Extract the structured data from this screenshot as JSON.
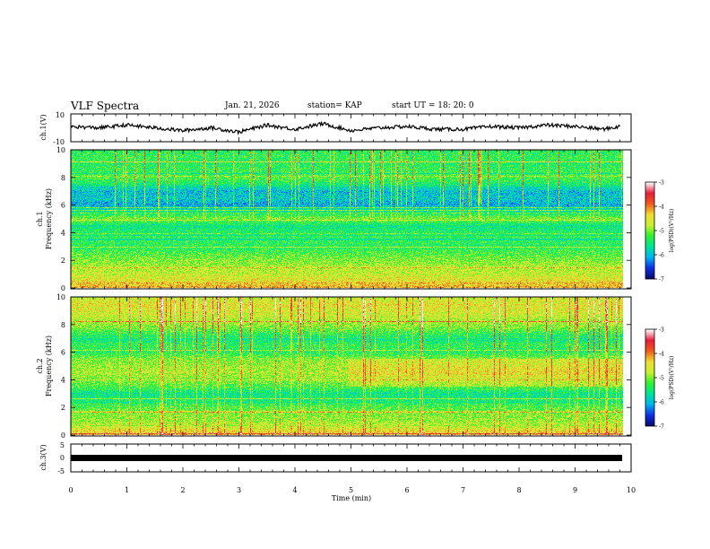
{
  "header": {
    "title": "VLF Spectra",
    "date": "Jan. 21, 2026",
    "station": "station= KAP",
    "start": "start  UT =   18: 20: 0"
  },
  "colors": {
    "spectrum": [
      "#0a0a6e",
      "#1030e6",
      "#00b4f0",
      "#00e696",
      "#32f032",
      "#c8f032",
      "#f0dc32",
      "#f05a1e",
      "#e61e3c",
      "#ffffff"
    ]
  },
  "chart_data": [
    {
      "type": "line",
      "name": "ch1-voltage",
      "ylabel": "ch.1(V)",
      "ylim": [
        -10,
        10
      ],
      "ytick_labels": [
        "10",
        "-10"
      ],
      "x_minutes": [
        0,
        0.5,
        1,
        1.5,
        2,
        2.5,
        3,
        3.5,
        4,
        4.5,
        5,
        5.5,
        6,
        6.5,
        7,
        7.5,
        8,
        8.5,
        9,
        9.5,
        9.8
      ],
      "y": [
        1,
        0,
        2,
        0,
        -2,
        0,
        -3,
        2,
        -1,
        3,
        -2,
        0,
        1,
        -1,
        -1,
        1,
        0,
        2,
        1,
        -1,
        1
      ]
    },
    {
      "type": "heatmap",
      "name": "ch1-spectrogram",
      "ylabel": "ch.1",
      "ylabel2": "Frequency (kHz)",
      "ylim": [
        0,
        10
      ],
      "ytick_labels": [
        "0",
        "2",
        "4",
        "6",
        "8",
        "10"
      ],
      "colorbar": {
        "label": "log(PSD)(V²/Hz)",
        "range": [
          -7,
          -3
        ],
        "ticks": [
          "-3",
          "-4",
          "-5",
          "-6",
          "-7"
        ]
      },
      "profile_khz": [
        0,
        0.5,
        1,
        1.5,
        2,
        2.5,
        3,
        3.5,
        4,
        4.5,
        5,
        5.5,
        6,
        6.5,
        7,
        7.5,
        8,
        8.5,
        9,
        9.5,
        10
      ],
      "profile_logpsd": [
        -4.2,
        -4.5,
        -4.7,
        -4.8,
        -5.0,
        -5.2,
        -5.4,
        -5.3,
        -5.4,
        -5.6,
        -5.0,
        -5.6,
        -6.1,
        -5.9,
        -6.0,
        -5.5,
        -5.2,
        -5.3,
        -5.4,
        -5.3,
        -5.4
      ]
    },
    {
      "type": "heatmap",
      "name": "ch2-spectrogram",
      "ylabel": "ch.2",
      "ylabel2": "Frequency (kHz)",
      "ylim": [
        0,
        10
      ],
      "ytick_labels": [
        "0",
        "2",
        "4",
        "6",
        "8",
        "10"
      ],
      "colorbar": {
        "label": "log(PSD)(V²/Hz)",
        "range": [
          -7,
          -3
        ],
        "ticks": [
          "-3",
          "-4",
          "-5",
          "-6",
          "-7"
        ]
      },
      "profile_khz": [
        0,
        0.5,
        1,
        1.5,
        2,
        2.5,
        3,
        3.5,
        4,
        4.5,
        5,
        5.5,
        6,
        6.5,
        7,
        7.5,
        8,
        8.5,
        9,
        9.5,
        10
      ],
      "profile_logpsd": [
        -4.3,
        -4.6,
        -4.9,
        -5.0,
        -5.2,
        -5.5,
        -5.6,
        -5.2,
        -5.0,
        -4.8,
        -4.9,
        -5.0,
        -5.4,
        -5.3,
        -5.6,
        -5.2,
        -4.9,
        -4.7,
        -4.6,
        -4.5,
        -4.7
      ]
    },
    {
      "type": "line",
      "name": "ch3-voltage",
      "ylabel": "ch.3(V)",
      "ylim": [
        -5,
        5
      ],
      "ytick_labels": [
        "5",
        "0",
        "-5"
      ],
      "x_minutes": [
        0,
        9.8
      ],
      "y": [
        0,
        0
      ]
    }
  ],
  "xaxis": {
    "label": "Time (min)",
    "range": [
      0,
      10
    ],
    "ticks": [
      "0",
      "1",
      "2",
      "3",
      "4",
      "5",
      "6",
      "7",
      "8",
      "9",
      "10"
    ]
  }
}
